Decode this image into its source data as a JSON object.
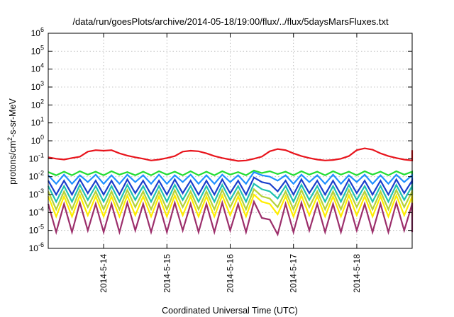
{
  "chart_data": {
    "type": "line",
    "title": "/data/run/goesPlots/archive/2014-05-18/19:00/flux/../flux/5daysMarsFluxes.txt",
    "xlabel": "Coordinated Universal Time (UTC)",
    "ylabel": "protons/cm²-s-sr-MeV",
    "y_scale": "log",
    "ylim": [
      1e-06,
      1000000.0
    ],
    "y_ticks": [
      {
        "exp": -6,
        "base": "10",
        "sup": "-6"
      },
      {
        "exp": -5,
        "base": "10",
        "sup": "-5"
      },
      {
        "exp": -4,
        "base": "10",
        "sup": "-4"
      },
      {
        "exp": -3,
        "base": "10",
        "sup": "-3"
      },
      {
        "exp": -2,
        "base": "10",
        "sup": "-2"
      },
      {
        "exp": -1,
        "base": "10",
        "sup": "-1"
      },
      {
        "exp": 0,
        "base": "10",
        "sup": "0"
      },
      {
        "exp": 1,
        "base": "10",
        "sup": "1"
      },
      {
        "exp": 2,
        "base": "10",
        "sup": "2"
      },
      {
        "exp": 3,
        "base": "10",
        "sup": "3"
      },
      {
        "exp": 4,
        "base": "10",
        "sup": "4"
      },
      {
        "exp": 5,
        "base": "10",
        "sup": "5"
      },
      {
        "exp": 6,
        "base": "10",
        "sup": "6"
      }
    ],
    "xlim": [
      "2014-05-13T03:00",
      "2014-05-18T21:00"
    ],
    "x_ticks": [
      "2014-5-14",
      "2014-5-15",
      "2014-5-16",
      "2014-5-17",
      "2014-5-18"
    ],
    "x_tick_dates": [
      "2014-05-14T00:00",
      "2014-05-15T00:00",
      "2014-05-16T00:00",
      "2014-05-17T00:00",
      "2014-05-18T00:00"
    ],
    "grid": true,
    "legend": "none",
    "sample_step_hours": 3,
    "series": [
      {
        "color": "#e8141c",
        "values": [
          0.12,
          0.1,
          0.09,
          0.11,
          0.13,
          0.25,
          0.3,
          0.28,
          0.3,
          0.2,
          0.15,
          0.12,
          0.1,
          0.08,
          0.09,
          0.11,
          0.14,
          0.25,
          0.28,
          0.26,
          0.2,
          0.14,
          0.11,
          0.09,
          0.075,
          0.08,
          0.1,
          0.13,
          0.26,
          0.35,
          0.3,
          0.2,
          0.14,
          0.11,
          0.09,
          0.08,
          0.085,
          0.1,
          0.14,
          0.3,
          0.38,
          0.32,
          0.2,
          0.14,
          0.11,
          0.09,
          0.08,
          0.08,
          0.09,
          0.12,
          0.2,
          0.3
        ]
      },
      {
        "color": "#22dd33",
        "values": [
          0.018,
          0.012,
          0.019,
          0.012,
          0.02,
          0.013,
          0.019,
          0.012,
          0.02,
          0.013,
          0.018,
          0.012,
          0.019,
          0.012,
          0.02,
          0.013,
          0.019,
          0.012,
          0.02,
          0.012,
          0.019,
          0.012,
          0.02,
          0.013,
          0.018,
          0.012,
          0.022,
          0.016,
          0.02,
          0.014,
          0.019,
          0.012,
          0.02,
          0.013,
          0.019,
          0.012,
          0.02,
          0.013,
          0.019,
          0.012,
          0.02,
          0.013,
          0.019,
          0.012,
          0.02,
          0.013,
          0.019,
          0.012,
          0.02,
          0.013,
          0.019,
          0.015
        ]
      },
      {
        "color": "#1f8fff",
        "values": [
          0.012,
          0.004,
          0.013,
          0.004,
          0.012,
          0.005,
          0.013,
          0.004,
          0.012,
          0.004,
          0.013,
          0.005,
          0.012,
          0.004,
          0.013,
          0.004,
          0.012,
          0.005,
          0.013,
          0.004,
          0.012,
          0.004,
          0.013,
          0.005,
          0.012,
          0.004,
          0.018,
          0.012,
          0.01,
          0.006,
          0.012,
          0.004,
          0.013,
          0.005,
          0.012,
          0.004,
          0.013,
          0.004,
          0.012,
          0.005,
          0.013,
          0.004,
          0.012,
          0.004,
          0.013,
          0.005,
          0.012,
          0.004,
          0.013,
          0.004,
          0.012,
          0.005
        ]
      },
      {
        "color": "#1a3fcc",
        "values": [
          0.006,
          0.001,
          0.006,
          0.001,
          0.007,
          0.0012,
          0.006,
          0.001,
          0.006,
          0.001,
          0.007,
          0.0012,
          0.006,
          0.001,
          0.006,
          0.001,
          0.007,
          0.0012,
          0.006,
          0.001,
          0.006,
          0.001,
          0.007,
          0.0012,
          0.006,
          0.001,
          0.009,
          0.005,
          0.004,
          0.0015,
          0.006,
          0.001,
          0.007,
          0.0012,
          0.006,
          0.001,
          0.006,
          0.001,
          0.007,
          0.0012,
          0.006,
          0.001,
          0.006,
          0.001,
          0.007,
          0.0012,
          0.006,
          0.001,
          0.006,
          0.001,
          0.007,
          0.0015
        ]
      },
      {
        "color": "#1fc2b0",
        "values": [
          0.003,
          0.0004,
          0.003,
          0.0004,
          0.0035,
          0.0005,
          0.003,
          0.0004,
          0.003,
          0.0004,
          0.0035,
          0.0005,
          0.003,
          0.0004,
          0.003,
          0.0004,
          0.0035,
          0.0005,
          0.003,
          0.0004,
          0.003,
          0.0004,
          0.0035,
          0.0005,
          0.003,
          0.0004,
          0.004,
          0.002,
          0.0015,
          0.0006,
          0.003,
          0.0004,
          0.0035,
          0.0005,
          0.003,
          0.0004,
          0.003,
          0.0004,
          0.0035,
          0.0005,
          0.003,
          0.0004,
          0.003,
          0.0004,
          0.0035,
          0.0005,
          0.003,
          0.0004,
          0.003,
          0.0004,
          0.0035,
          0.0006
        ]
      },
      {
        "color": "#b5d23a",
        "values": [
          0.0015,
          0.00015,
          0.0015,
          0.00015,
          0.0018,
          0.0002,
          0.0015,
          0.00015,
          0.0015,
          0.00015,
          0.0018,
          0.0002,
          0.0015,
          0.00015,
          0.0015,
          0.00015,
          0.0018,
          0.0002,
          0.0015,
          0.00015,
          0.0015,
          0.00015,
          0.0018,
          0.0002,
          0.0015,
          0.00015,
          0.002,
          0.0008,
          0.0006,
          0.0002,
          0.0015,
          0.00015,
          0.0018,
          0.0002,
          0.0015,
          0.00015,
          0.0015,
          0.00015,
          0.0018,
          0.0002,
          0.0015,
          0.00015,
          0.0015,
          0.00015,
          0.0018,
          0.0002,
          0.0015,
          0.00015,
          0.0015,
          0.00015,
          0.0018,
          0.0002
        ]
      },
      {
        "color": "#ffee00",
        "values": [
          0.0008,
          6e-05,
          0.0008,
          6e-05,
          0.0009,
          7e-05,
          0.0008,
          6e-05,
          0.0008,
          6e-05,
          0.0009,
          7e-05,
          0.0008,
          6e-05,
          0.0008,
          6e-05,
          0.0009,
          7e-05,
          0.0008,
          6e-05,
          0.0008,
          6e-05,
          0.0009,
          7e-05,
          0.0008,
          6e-05,
          0.001,
          0.0004,
          0.0003,
          8e-05,
          0.0008,
          6e-05,
          0.0009,
          7e-05,
          0.0008,
          6e-05,
          0.0008,
          6e-05,
          0.0009,
          7e-05,
          0.0008,
          6e-05,
          0.0008,
          6e-05,
          0.0009,
          7e-05,
          0.0008,
          6e-05,
          0.0008,
          6e-05,
          0.0009,
          7e-05
        ]
      },
      {
        "color": "#9c2f6b",
        "values": [
          0.0003,
          8e-06,
          0.0003,
          8e-06,
          0.00035,
          1e-05,
          0.0003,
          8e-06,
          0.0003,
          8e-06,
          0.00035,
          1e-05,
          0.0003,
          8e-06,
          0.0003,
          8e-06,
          0.00035,
          1e-05,
          0.0003,
          8e-06,
          0.0003,
          8e-06,
          0.00035,
          1e-05,
          0.0003,
          8e-06,
          0.0004,
          5e-05,
          4e-05,
          6e-06,
          0.0003,
          8e-06,
          0.00035,
          1e-05,
          0.0003,
          8e-06,
          0.0003,
          8e-06,
          0.00035,
          1e-05,
          0.0003,
          8e-06,
          0.0003,
          8e-06,
          0.00035,
          1e-05,
          0.0003,
          8e-06,
          0.0003,
          8e-06,
          0.00035,
          1e-05
        ]
      }
    ]
  }
}
